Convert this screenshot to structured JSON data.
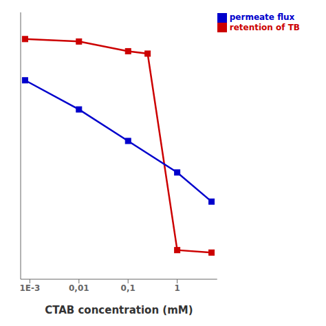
{
  "chart_data": {
    "type": "line",
    "x_label": "CTAB concentration (mM)",
    "log": "x",
    "xlim": [
      0.00065,
      6.5
    ],
    "xticks": [
      {
        "value": 0.001,
        "label": "1E-3"
      },
      {
        "value": 0.01,
        "label": "0,01"
      },
      {
        "value": 0.1,
        "label": "0,1"
      },
      1
    ],
    "ylim": [
      -2,
      108
    ],
    "tick_labels": "x",
    "grid": false,
    "legend": "upper right",
    "marker": "square",
    "series": [
      {
        "name": "retention of TB",
        "color": "#cc0000",
        "x": [
          0.0008,
          0.01,
          0.1,
          0.25,
          1.0,
          5.0
        ],
        "values": [
          97,
          96,
          92,
          91,
          10,
          9
        ]
      },
      {
        "name": "permeate flux",
        "color": "#0000cc",
        "x": [
          0.0008,
          0.01,
          0.1,
          1.0,
          5.0
        ],
        "values": [
          80,
          68,
          55,
          42,
          30
        ]
      }
    ]
  }
}
